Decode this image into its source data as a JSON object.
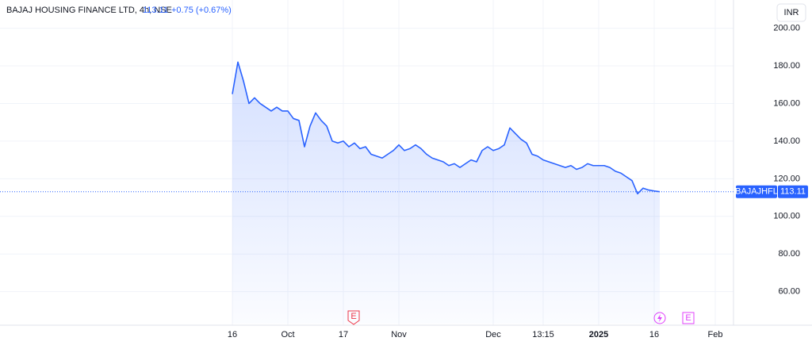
{
  "chart_data": {
    "type": "area",
    "header": {
      "symbol": "BAJAJ HOUSING FINANCE LTD, 4h, NSE",
      "price": "113.11",
      "change": "+0.75 (+0.67%)"
    },
    "currency": "INR",
    "categories": [
      "16",
      null,
      null,
      null,
      null,
      null,
      null,
      null,
      null,
      null,
      "Oct",
      null,
      null,
      null,
      null,
      null,
      null,
      null,
      null,
      null,
      "17",
      null,
      null,
      null,
      null,
      null,
      null,
      null,
      null,
      null,
      "Nov",
      null,
      null,
      null,
      null,
      null,
      null,
      null,
      null,
      null,
      null,
      null,
      null,
      null,
      null,
      null,
      null,
      "Dec",
      null,
      null,
      null,
      null,
      null,
      null,
      null,
      null,
      "13:15",
      null,
      null,
      null,
      null,
      null,
      null,
      null,
      null,
      null,
      "2025",
      null,
      null,
      null,
      null,
      null,
      null,
      null,
      null,
      null,
      "16",
      null,
      null,
      null,
      null,
      null,
      null,
      null,
      null,
      null,
      null,
      "Feb"
    ],
    "series": [
      {
        "name": "BAJAJHFL",
        "color": "#2962ff",
        "values": [
          165,
          182,
          172,
          160,
          163,
          160,
          158,
          156,
          158,
          156,
          156,
          152,
          151,
          137,
          148,
          155,
          151,
          148,
          140,
          139,
          140,
          137,
          139,
          136,
          137,
          133,
          132,
          131,
          133,
          135,
          138,
          135,
          136,
          138,
          136,
          133,
          131,
          130,
          129,
          127,
          128,
          126,
          128,
          130,
          129,
          135,
          137,
          135,
          136,
          138,
          147,
          144,
          141,
          139,
          133,
          132,
          130,
          129,
          128,
          127,
          126,
          127,
          125,
          126,
          128,
          127,
          127,
          127,
          126,
          124,
          123,
          121,
          119,
          112,
          115,
          114,
          113.5,
          113.11,
          null,
          null,
          null,
          null,
          null,
          null,
          null,
          null,
          null,
          null
        ]
      }
    ],
    "price_label": {
      "value": 113.11,
      "label": "113.11"
    },
    "events": [
      {
        "label": "E",
        "color": "#f23645"
      },
      {
        "label": "E",
        "color": "#e040fb"
      }
    ],
    "ylim": [
      43,
      215
    ],
    "yticks": [
      {
        "value": 60,
        "label": "60.00"
      },
      {
        "value": 80,
        "label": "80.00"
      },
      {
        "value": 100,
        "label": "100.00"
      },
      {
        "value": 120,
        "label": "120.00"
      },
      {
        "value": 140,
        "label": "140.00"
      },
      {
        "value": 160,
        "label": "160.00"
      },
      {
        "value": 180,
        "label": "180.00"
      },
      {
        "value": 200,
        "label": "200.00"
      }
    ],
    "grid": true
  }
}
